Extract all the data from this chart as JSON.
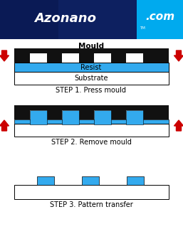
{
  "bg_color": "#ffffff",
  "logo_dark1": "#0a1a55",
  "logo_dark2": "#0d2060",
  "logo_cyan": "#00aaee",
  "mould_color": "#111111",
  "resist_color": "#33aaee",
  "substrate_color": "#ffffff",
  "border_color": "#000000",
  "arrow_color": "#cc0000",
  "step1_label": "STEP 1. Press mould",
  "step2_label": "STEP 2. Remove mould",
  "step3_label": "STEP 3. Pattern transfer",
  "mould_label": "Mould",
  "resist_label": "Resist",
  "substrate_label": "Substrate",
  "logo_text1": "Azonano",
  "logo_text2": ".com",
  "logo_tm": "TM"
}
